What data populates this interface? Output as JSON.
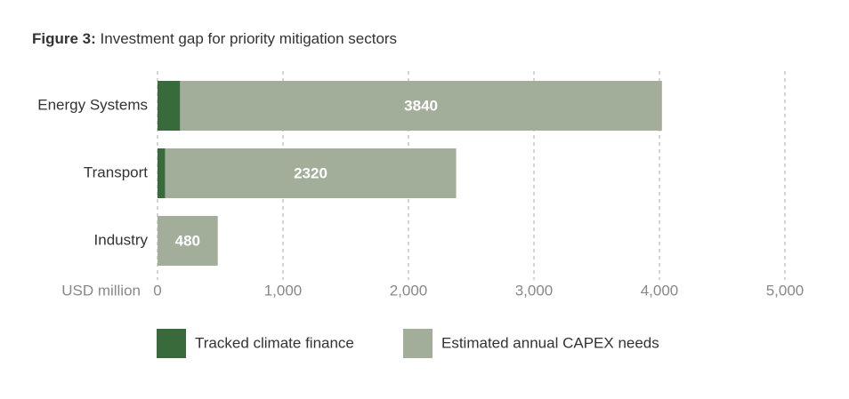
{
  "chart_data": {
    "type": "stacked_barh",
    "title_label": "Figure 3:",
    "title": "Investment gap for priority mitigation sectors",
    "xlabel": "USD million",
    "categories": [
      "Energy Systems",
      "Transport",
      "Industry"
    ],
    "series": [
      {
        "name": "Tracked climate finance",
        "color": "#396a3c",
        "values": [
          180,
          60,
          0
        ]
      },
      {
        "name": "Estimated annual CAPEX needs",
        "color": "#a3ae9a",
        "values": [
          3840,
          2320,
          480
        ]
      }
    ],
    "xlim": [
      0,
      5000
    ],
    "xticks": [
      0,
      {
        "value": 1000,
        "label": "1,000"
      },
      {
        "value": 2000,
        "label": "2,000"
      },
      {
        "value": 3000,
        "label": "3,000"
      },
      {
        "value": 4000,
        "label": "4,000"
      },
      {
        "value": 5000,
        "label": "5,000"
      }
    ],
    "grid": true
  }
}
